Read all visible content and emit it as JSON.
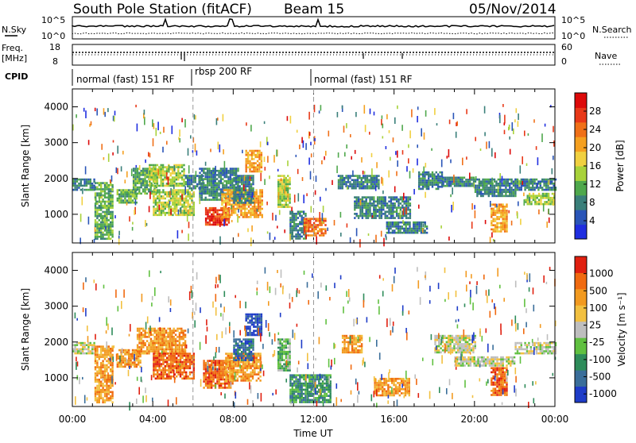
{
  "header": {
    "station": "South Pole Station (fitACF)",
    "beam": "Beam 15",
    "date": "05/Nov/2014"
  },
  "params_panel": {
    "nsky_label": "N.Sky",
    "nsky_ticks": [
      "10^5",
      "10^0"
    ],
    "nsearch_label": "N.Search",
    "nsearch_ticks": [
      "10^5",
      "10^0"
    ],
    "freq_label_line1": "Freq.",
    "freq_label_line2": "[MHz]",
    "freq_ticks": [
      "18",
      "8"
    ],
    "nave_label": "Nave",
    "nave_ticks": [
      "60",
      "0"
    ],
    "cpid_label": "CPID"
  },
  "modes": [
    {
      "label": "normal (fast) 151 RF",
      "start_hour": 0
    },
    {
      "label": "rbsp 200 RF",
      "start_hour": 6
    },
    {
      "label": "normal (fast) 151 RF",
      "start_hour": 12
    }
  ],
  "chart_data": [
    {
      "type": "heatmap",
      "panel": "power",
      "ylabel": "Slant Range [km]",
      "xlabel": "",
      "xlim_hours": [
        0,
        24
      ],
      "ylim": [
        200,
        4500
      ],
      "y_ticks": [
        1000,
        2000,
        3000,
        4000
      ],
      "colorbar_label": "Power [dB]",
      "colorbar_ticks": [
        "28",
        "24",
        "20",
        "16",
        "12",
        "8",
        "4"
      ],
      "colormap": [
        "#1f2ee0",
        "#2a55b8",
        "#3a7f7a",
        "#4fa84c",
        "#a8d23a",
        "#f0d040",
        "#f5a020",
        "#f07018",
        "#e83818",
        "#dd0a0a"
      ],
      "patches": [
        {
          "t0": 0.0,
          "t1": 1.1,
          "r0": 1700,
          "r1": 2000,
          "val": 8
        },
        {
          "t0": 1.1,
          "t1": 2.0,
          "r0": 300,
          "r1": 1900,
          "val": 10
        },
        {
          "t0": 2.2,
          "t1": 3.2,
          "r0": 1300,
          "r1": 1700,
          "val": 10
        },
        {
          "t0": 3.0,
          "t1": 4.2,
          "r0": 1600,
          "r1": 2300,
          "val": 10
        },
        {
          "t0": 3.8,
          "t1": 5.6,
          "r0": 1800,
          "r1": 2400,
          "val": 14
        },
        {
          "t0": 4.0,
          "t1": 6.0,
          "r0": 1000,
          "r1": 1700,
          "val": 12
        },
        {
          "t0": 5.6,
          "t1": 6.5,
          "r0": 1700,
          "r1": 2100,
          "val": 6
        },
        {
          "t0": 6.3,
          "t1": 8.2,
          "r0": 1400,
          "r1": 2300,
          "val": 6
        },
        {
          "t0": 6.6,
          "t1": 7.8,
          "r0": 700,
          "r1": 1200,
          "val": 26
        },
        {
          "t0": 7.4,
          "t1": 9.4,
          "r0": 900,
          "r1": 1700,
          "val": 18
        },
        {
          "t0": 8.6,
          "t1": 9.4,
          "r0": 2200,
          "r1": 2800,
          "val": 20
        },
        {
          "t0": 8.0,
          "t1": 9.0,
          "r0": 1300,
          "r1": 2100,
          "val": 8
        },
        {
          "t0": 10.2,
          "t1": 10.8,
          "r0": 1200,
          "r1": 2100,
          "val": 14
        },
        {
          "t0": 10.8,
          "t1": 11.6,
          "r0": 300,
          "r1": 1100,
          "val": 6
        },
        {
          "t0": 11.5,
          "t1": 12.6,
          "r0": 400,
          "r1": 900,
          "val": 22
        },
        {
          "t0": 13.2,
          "t1": 15.2,
          "r0": 1700,
          "r1": 2100,
          "val": 6
        },
        {
          "t0": 14.0,
          "t1": 16.8,
          "r0": 900,
          "r1": 1500,
          "val": 8
        },
        {
          "t0": 15.6,
          "t1": 17.6,
          "r0": 500,
          "r1": 800,
          "val": 6
        },
        {
          "t0": 17.2,
          "t1": 18.4,
          "r0": 1700,
          "r1": 2200,
          "val": 8
        },
        {
          "t0": 18.4,
          "t1": 20.0,
          "r0": 1800,
          "r1": 2050,
          "val": 6
        },
        {
          "t0": 20.0,
          "t1": 22.0,
          "r0": 1500,
          "r1": 2000,
          "val": 8
        },
        {
          "t0": 20.8,
          "t1": 21.6,
          "r0": 500,
          "r1": 1300,
          "val": 20
        },
        {
          "t0": 22.0,
          "t1": 24.0,
          "r0": 1700,
          "r1": 2000,
          "val": 6
        },
        {
          "t0": 22.5,
          "t1": 24.0,
          "r0": 1300,
          "r1": 1600,
          "val": 12
        }
      ]
    },
    {
      "type": "heatmap",
      "panel": "velocity",
      "ylabel": "Slant Range [km]",
      "xlabel": "Time UT",
      "xlim_hours": [
        0,
        24
      ],
      "ylim": [
        200,
        4500
      ],
      "y_ticks": [
        1000,
        2000,
        3000,
        4000
      ],
      "x_ticks": [
        "00:00",
        "04:00",
        "08:00",
        "12:00",
        "16:00",
        "20:00",
        "00:00"
      ],
      "colorbar_label": "Velocity [m s⁻¹]",
      "colorbar_ticks": [
        "1000",
        "500",
        "100",
        "25",
        "-25",
        "-100",
        "-500",
        "-1000"
      ],
      "colormap": [
        "#1e3cc8",
        "#3a6e9a",
        "#2e8c5a",
        "#60c040",
        "#bebebe",
        "#f2c040",
        "#f29a20",
        "#f06a10",
        "#e02010"
      ],
      "patches": [
        {
          "t0": 0.0,
          "t1": 1.1,
          "r0": 1700,
          "r1": 2000,
          "val": 4
        },
        {
          "t0": 1.1,
          "t1": 2.0,
          "r0": 300,
          "r1": 1900,
          "val": 6
        },
        {
          "t0": 2.2,
          "t1": 3.4,
          "r0": 1300,
          "r1": 1800,
          "val": 6
        },
        {
          "t0": 3.2,
          "t1": 5.6,
          "r0": 1700,
          "r1": 2400,
          "val": 6
        },
        {
          "t0": 4.0,
          "t1": 6.0,
          "r0": 1000,
          "r1": 1700,
          "val": 7
        },
        {
          "t0": 6.5,
          "t1": 8.0,
          "r0": 700,
          "r1": 1500,
          "val": 7
        },
        {
          "t0": 7.6,
          "t1": 9.4,
          "r0": 900,
          "r1": 1700,
          "val": 6
        },
        {
          "t0": 8.6,
          "t1": 9.4,
          "r0": 2200,
          "r1": 2800,
          "val": 0
        },
        {
          "t0": 8.0,
          "t1": 9.0,
          "r0": 1500,
          "r1": 2100,
          "val": 1
        },
        {
          "t0": 10.2,
          "t1": 10.8,
          "r0": 1200,
          "r1": 2100,
          "val": 3
        },
        {
          "t0": 10.8,
          "t1": 12.8,
          "r0": 300,
          "r1": 1100,
          "val": 2
        },
        {
          "t0": 13.4,
          "t1": 14.4,
          "r0": 1700,
          "r1": 2200,
          "val": 6
        },
        {
          "t0": 15.0,
          "t1": 16.8,
          "r0": 500,
          "r1": 1000,
          "val": 6
        },
        {
          "t0": 18.0,
          "t1": 20.0,
          "r0": 1700,
          "r1": 2200,
          "val": 4
        },
        {
          "t0": 19.0,
          "t1": 22.0,
          "r0": 1350,
          "r1": 1600,
          "val": 4
        },
        {
          "t0": 20.8,
          "t1": 21.6,
          "r0": 500,
          "r1": 1300,
          "val": 7
        },
        {
          "t0": 22.0,
          "t1": 24.0,
          "r0": 1700,
          "r1": 2000,
          "val": 4
        }
      ]
    }
  ]
}
